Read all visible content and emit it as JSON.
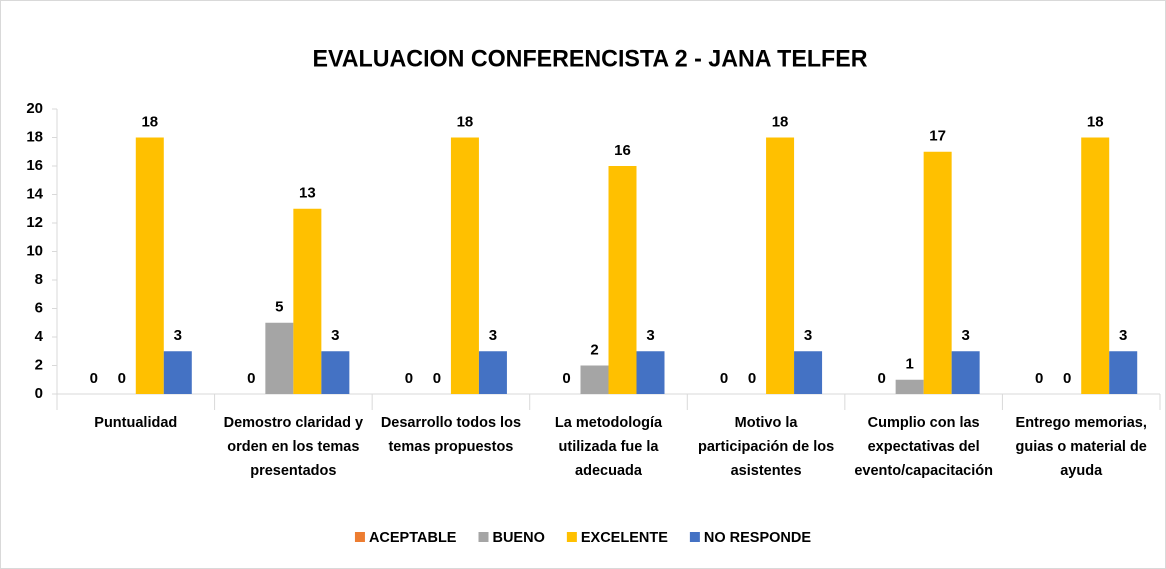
{
  "chart_data": {
    "type": "bar",
    "title": "EVALUACION CONFERENCISTA 2 - JANA TELFER",
    "categories": [
      "Puntualidad",
      "Demostro claridad y orden en los temas presentados",
      "Desarrollo todos los temas propuestos",
      "La metodología utilizada fue la adecuada",
      "Motivo la participación de los asistentes",
      "Cumplio con las expectativas del evento/capacitación",
      "Entrego memorias, guias o material de ayuda"
    ],
    "series": [
      {
        "name": "ACEPTABLE",
        "color": "#ed7d31",
        "values": [
          0,
          0,
          0,
          0,
          0,
          0,
          0
        ]
      },
      {
        "name": "BUENO",
        "color": "#a5a5a5",
        "values": [
          0,
          5,
          0,
          2,
          0,
          1,
          0
        ]
      },
      {
        "name": "EXCELENTE",
        "color": "#ffc000",
        "values": [
          18,
          13,
          18,
          16,
          18,
          17,
          18
        ]
      },
      {
        "name": "NO RESPONDE",
        "color": "#4472c4",
        "values": [
          3,
          3,
          3,
          3,
          3,
          3,
          3
        ]
      }
    ],
    "ylim": [
      0,
      20
    ],
    "yticks": [
      0,
      2,
      4,
      6,
      8,
      10,
      12,
      14,
      16,
      18,
      20
    ],
    "grid": false,
    "legend": "bottom"
  }
}
